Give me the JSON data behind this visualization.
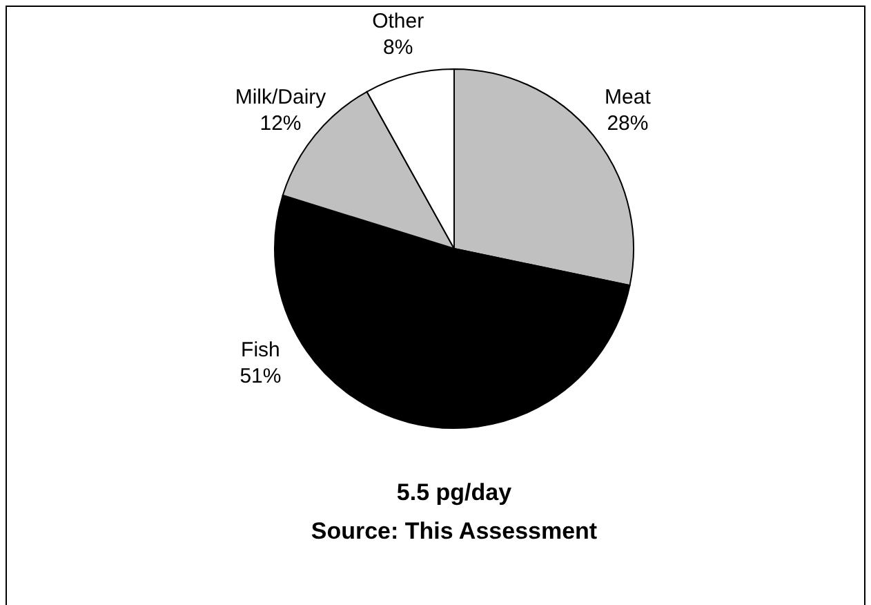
{
  "chart_data": {
    "type": "pie",
    "categories": [
      "Meat",
      "Fish",
      "Milk/Dairy",
      "Other"
    ],
    "values": [
      28,
      51,
      12,
      8
    ],
    "colors": [
      "#c0c0c0",
      "#000000",
      "#c0c0c0",
      "#ffffff"
    ],
    "value_labels": [
      "28%",
      "51%",
      "12%",
      "8%"
    ],
    "annotations": [
      "5.5 pg/day",
      "Source: This Assessment"
    ]
  }
}
